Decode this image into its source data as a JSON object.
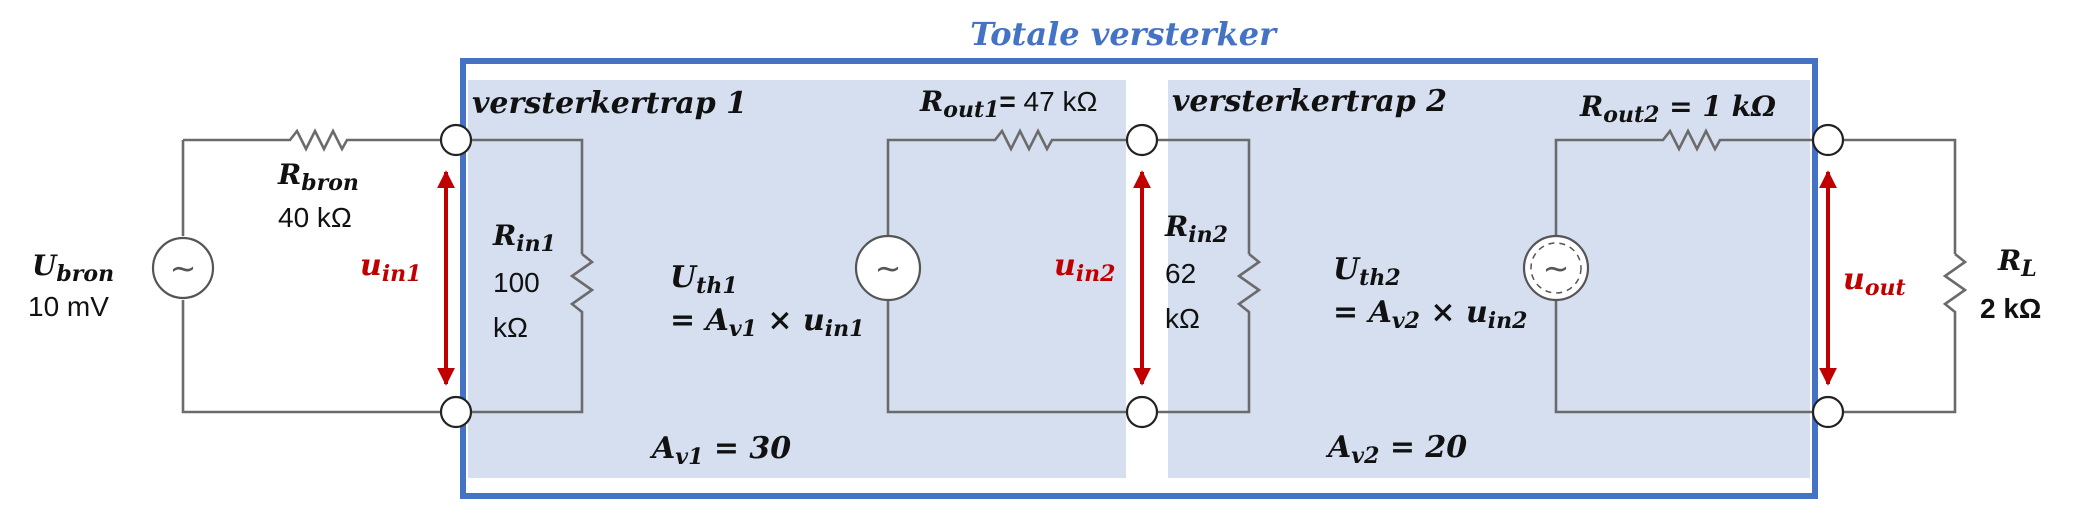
{
  "title": "Totale versterker",
  "colors": {
    "accent": "#4472c4",
    "panel": "#d6dff0",
    "arrow": "#c00000",
    "wire": "#6b6b6b"
  },
  "source": {
    "symbol": "~",
    "name_main": "U",
    "name_sub": "bron",
    "value": "10 mV",
    "resistor_main": "R",
    "resistor_sub": "bron",
    "resistor_value": "40 kΩ"
  },
  "uin1": {
    "main": "u",
    "sub": "in1"
  },
  "stage1": {
    "title": "versterkertrap 1",
    "rin_main": "R",
    "rin_sub": "in1",
    "rin_value_line1": "100",
    "rin_value_line2": "kΩ",
    "rout_main": "R",
    "rout_sub": "out1",
    "rout_eq": "=",
    "rout_value": " 47 kΩ",
    "uth_main": "U",
    "uth_sub": "th1",
    "uth_eq_prefix": "= A",
    "uth_eq_sub1": "v1",
    "uth_eq_mid": " × u",
    "uth_eq_sub2": "in1",
    "gain_main": "A",
    "gain_sub": "v1",
    "gain_eq": " = 30"
  },
  "uin2": {
    "main": "u",
    "sub": "in2"
  },
  "stage2": {
    "title": "versterkertrap 2",
    "rin_main": "R",
    "rin_sub": "in2",
    "rin_value_line1": "62",
    "rin_value_line2": "kΩ",
    "rout_main": "R",
    "rout_sub": "out2",
    "rout_eq": " = 1 kΩ",
    "uth_main": "U",
    "uth_sub": "th2",
    "uth_eq_prefix": "= A",
    "uth_eq_sub1": "v2",
    "uth_eq_mid": " × u",
    "uth_eq_sub2": "in2",
    "gain_main": "A",
    "gain_sub": "v2",
    "gain_eq": " = 20"
  },
  "uout": {
    "main": "u",
    "sub": "out"
  },
  "load": {
    "main": "R",
    "sub": "L",
    "value": "2 kΩ"
  }
}
